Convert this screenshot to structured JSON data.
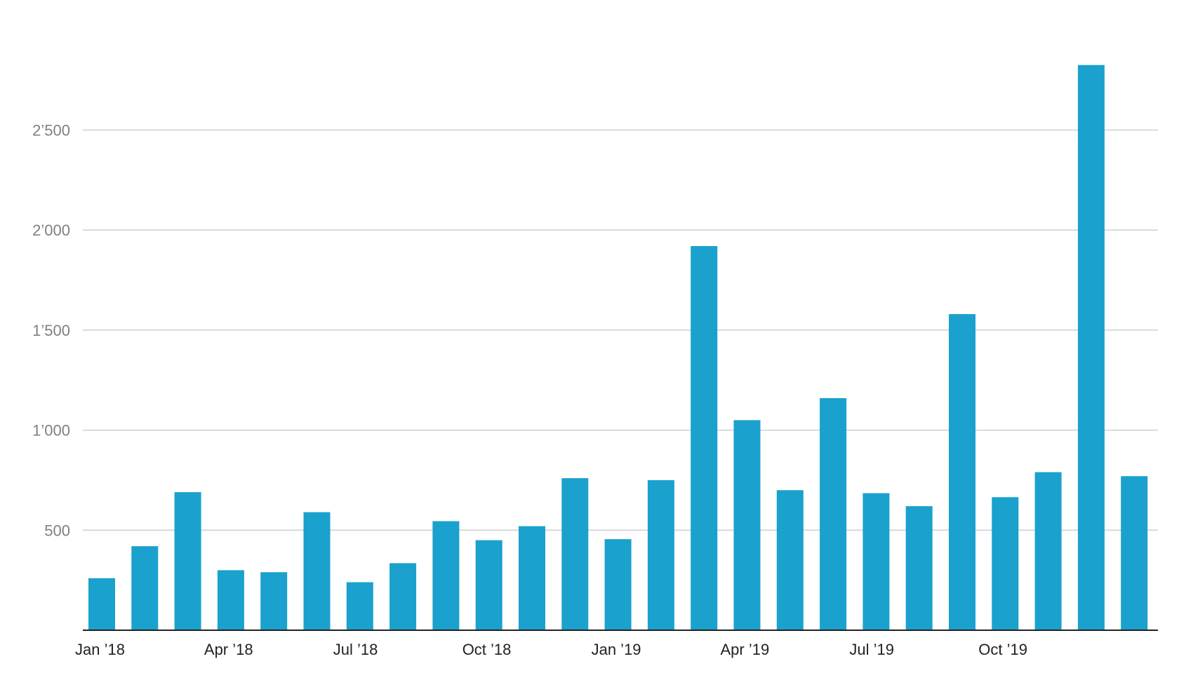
{
  "chart_data": {
    "type": "bar",
    "categories": [
      "Jan 2018",
      "Feb 2018",
      "Mar 2018",
      "Apr 2018",
      "May 2018",
      "Jun 2018",
      "Jul 2018",
      "Aug 2018",
      "Sep 2018",
      "Oct 2018",
      "Nov 2018",
      "Dec 2018",
      "Jan 2019",
      "Feb 2019",
      "Mar 2019",
      "Apr 2019",
      "May 2019",
      "Jun 2019",
      "Jul 2019",
      "Aug 2019",
      "Sep 2019",
      "Oct 2019",
      "Nov 2019",
      "Dec 2019",
      "Jan 2020"
    ],
    "values": [
      260,
      420,
      690,
      300,
      290,
      590,
      240,
      335,
      545,
      450,
      520,
      760,
      455,
      750,
      1920,
      1050,
      700,
      1160,
      685,
      620,
      1580,
      665,
      790,
      2825,
      770
    ],
    "title": "",
    "xlabel": "",
    "ylabel": "",
    "ylim": [
      0,
      2900
    ],
    "y_ticks": [
      500,
      1000,
      1500,
      2000,
      2500
    ],
    "y_tick_labels": [
      "500",
      "1’000",
      "1’500",
      "2’000",
      "2’500"
    ],
    "x_tick_labels": [
      "Jan ’18",
      "Apr ’18",
      "Jul ’18",
      "Oct ’18",
      "Jan ’19",
      "Apr ’19",
      "Jul ’19",
      "Oct ’19"
    ],
    "x_tick_indices": [
      0,
      3,
      6,
      9,
      12,
      15,
      18,
      21
    ],
    "grid": true,
    "legend": "none",
    "bar_color": "#1aa1cd"
  }
}
